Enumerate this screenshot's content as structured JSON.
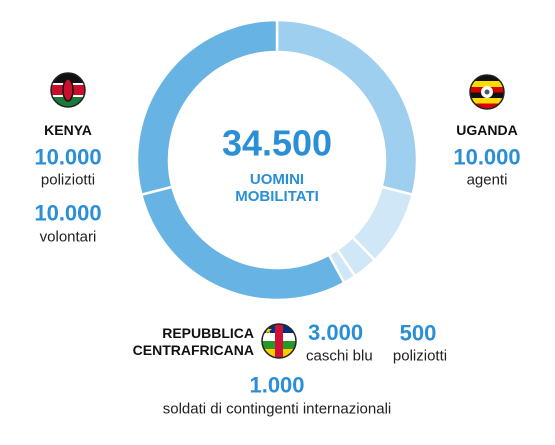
{
  "chart_data": {
    "type": "pie",
    "total": 34500,
    "total_label": "34.500",
    "subtitle": "UOMINI\nMOBILITATI",
    "series": [
      {
        "name": "UGANDA",
        "color": "#9fcfef",
        "values": [
          10000
        ],
        "value_labels": [
          "10.000"
        ],
        "units": [
          "agenti"
        ]
      },
      {
        "name": "REPUBBLICA\nCENTRAFRICANA",
        "color": "#cfe7f7",
        "values": [
          3000,
          1000,
          500
        ],
        "value_labels": [
          "3.000",
          "1.000",
          "500"
        ],
        "units": [
          "caschi blu",
          "soldati di contingenti internazionali",
          "poliziotti"
        ]
      },
      {
        "name": "KENYA",
        "color": "#66b3e4",
        "values": [
          10000,
          10000
        ],
        "value_labels": [
          "10.000",
          "10.000"
        ],
        "units": [
          "volontari",
          "poliziotti"
        ]
      }
    ]
  }
}
